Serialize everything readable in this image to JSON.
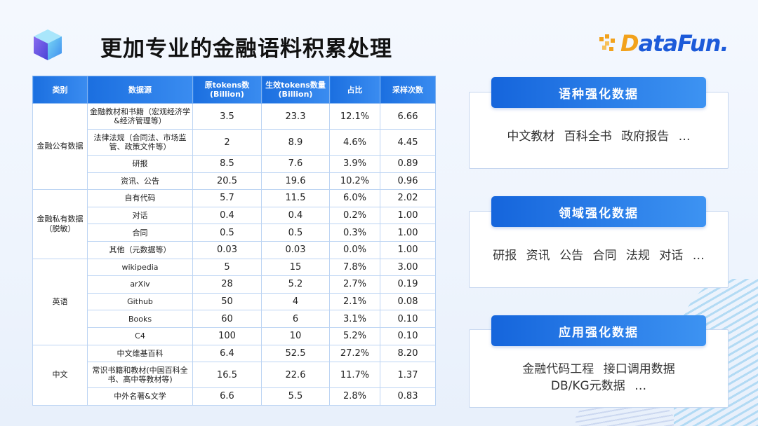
{
  "title": "更加专业的金融语料积累处理",
  "logo": {
    "first": "D",
    "rest": "ataFun."
  },
  "table": {
    "headers": [
      "类别",
      "数据源",
      "原tokens数\n(Billion)",
      "生效tokens数量\n(Billion)",
      "占比",
      "采样次数"
    ],
    "groups": [
      {
        "category": "金融公有数据",
        "rows": [
          {
            "source": "金融教材和书籍（宏观经济学&经济管理等）",
            "orig": "3.5",
            "eff": "23.3",
            "ratio": "12.1%",
            "samples": "6.66",
            "tall": true
          },
          {
            "source": "法律法规（合同法、市场监管、政策文件等）",
            "orig": "2",
            "eff": "8.9",
            "ratio": "4.6%",
            "samples": "4.45",
            "tall": true
          },
          {
            "source": "研报",
            "orig": "8.5",
            "eff": "7.6",
            "ratio": "3.9%",
            "samples": "0.89"
          },
          {
            "source": "资讯、公告",
            "orig": "20.5",
            "eff": "19.6",
            "ratio": "10.2%",
            "samples": "0.96"
          }
        ]
      },
      {
        "category": "金融私有数据\n（脱敏）",
        "rows": [
          {
            "source": "自有代码",
            "orig": "5.7",
            "eff": "11.5",
            "ratio": "6.0%",
            "samples": "2.02"
          },
          {
            "source": "对话",
            "orig": "0.4",
            "eff": "0.4",
            "ratio": "0.2%",
            "samples": "1.00"
          },
          {
            "source": "合同",
            "orig": "0.5",
            "eff": "0.5",
            "ratio": "0.3%",
            "samples": "1.00"
          },
          {
            "source": "其他（元数据等）",
            "orig": "0.03",
            "eff": "0.03",
            "ratio": "0.0%",
            "samples": "1.00"
          }
        ]
      },
      {
        "category": "英语",
        "rows": [
          {
            "source": "wikipedia",
            "orig": "5",
            "eff": "15",
            "ratio": "7.8%",
            "samples": "3.00"
          },
          {
            "source": "arXiv",
            "orig": "28",
            "eff": "5.2",
            "ratio": "2.7%",
            "samples": "0.19"
          },
          {
            "source": "Github",
            "orig": "50",
            "eff": "4",
            "ratio": "2.1%",
            "samples": "0.08"
          },
          {
            "source": "Books",
            "orig": "60",
            "eff": "6",
            "ratio": "3.1%",
            "samples": "0.10"
          },
          {
            "source": "C4",
            "orig": "100",
            "eff": "10",
            "ratio": "5.2%",
            "samples": "0.10"
          }
        ]
      },
      {
        "category": "中文",
        "rows": [
          {
            "source": "中文维基百科",
            "orig": "6.4",
            "eff": "52.5",
            "ratio": "27.2%",
            "samples": "8.20"
          },
          {
            "source": "常识书籍和教材(中国百科全书、高中等教材等)",
            "orig": "16.5",
            "eff": "22.6",
            "ratio": "11.7%",
            "samples": "1.37",
            "tall": true
          },
          {
            "source": "中外名著&文学",
            "orig": "6.6",
            "eff": "5.5",
            "ratio": "2.8%",
            "samples": "0.83"
          }
        ]
      }
    ]
  },
  "panels": [
    {
      "heading": "语种强化数据",
      "body": "中文教材 百科全书 政府报告 …"
    },
    {
      "heading": "领域强化数据",
      "body": "研报 资讯 公告 合同 法规 对话 …"
    },
    {
      "heading": "应用强化数据",
      "body_line1": "金融代码工程 接口调用数据",
      "body_line2": "DB/KG元数据 …"
    }
  ],
  "colors": {
    "accent": "#1b6fe0",
    "logo_orange": "#f2a21c",
    "logo_blue": "#1c5ad9"
  }
}
